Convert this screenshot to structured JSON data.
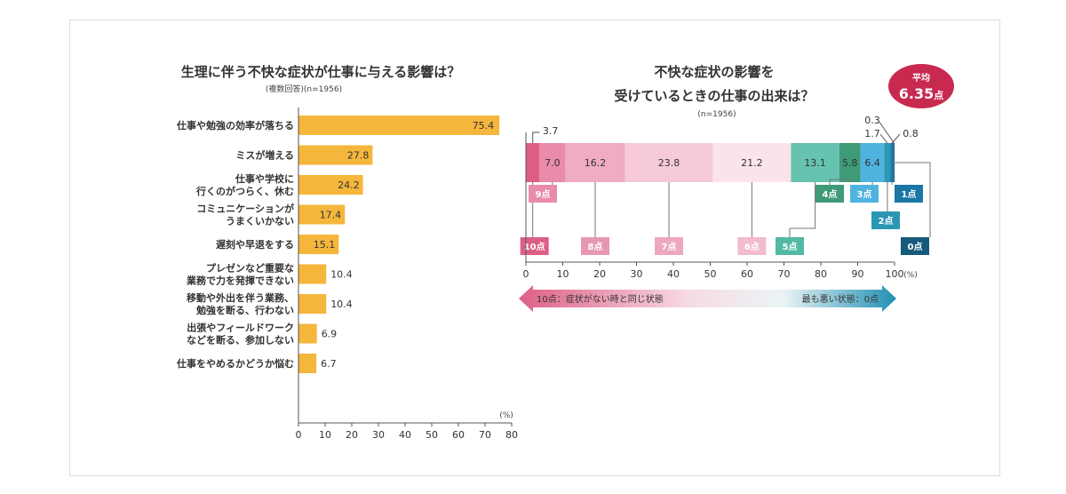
{
  "chart_data": [
    {
      "type": "bar",
      "orientation": "horizontal",
      "title": "生理に伴う不快な症状が仕事に与える影響は？",
      "subtitle": "(複数回答)(n=1956)",
      "unit": "(%)",
      "categories": [
        [
          "仕事や勉強の効率が落ちる"
        ],
        [
          "ミスが増える"
        ],
        [
          "仕事や学校に",
          "行くのがつらく、休む"
        ],
        [
          "コミュニケーションが",
          "うまくいかない"
        ],
        [
          "遅刻や早退をする"
        ],
        [
          "プレゼンなど重要な",
          "業務で力を発揮できない"
        ],
        [
          "移動や外出を伴う業務、",
          "勉強を断る、行わない"
        ],
        [
          "出張やフィールドワーク",
          "などを断る、参加しない"
        ],
        [
          "仕事をやめるかどうか悩む"
        ]
      ],
      "values": [
        75.4,
        27.8,
        24.2,
        17.4,
        15.1,
        10.4,
        10.4,
        6.9,
        6.7
      ],
      "value_labels": [
        "75.4",
        "27.8",
        "24.2",
        "17.4",
        "15.1",
        "10.4",
        "10.4",
        "6.9",
        "6.7"
      ],
      "xlim": [
        0,
        80
      ],
      "xticks": [
        "0",
        "10",
        "20",
        "30",
        "40",
        "50",
        "60",
        "70",
        "80"
      ],
      "bar_color": "#f5b63c"
    },
    {
      "type": "bar",
      "orientation": "stacked-100",
      "title": [
        "不快な症状の影響を",
        "受けているときの仕事の出来は？"
      ],
      "subtitle": "(n=1956)",
      "unit": "(%)",
      "segments": [
        {
          "score": "10点",
          "value": 3.7,
          "label": "3.7",
          "color": "#de5f86",
          "tag_color": "#de5f86"
        },
        {
          "score": "9点",
          "value": 7.0,
          "label": "7.0",
          "color": "#e98ca9",
          "tag_color": "#e98ca9"
        },
        {
          "score": "8点",
          "value": 16.2,
          "label": "16.2",
          "color": "#f0acc0",
          "tag_color": "#e798b0"
        },
        {
          "score": "7点",
          "value": 23.8,
          "label": "23.8",
          "color": "#f6cad6",
          "tag_color": "#eda8bd"
        },
        {
          "score": "6点",
          "value": 21.2,
          "label": "21.2",
          "color": "#fbe3ea",
          "tag_color": "#f1bccb"
        },
        {
          "score": "5点",
          "value": 13.1,
          "label": "13.1",
          "color": "#66c3b0",
          "tag_color": "#52b9a4"
        },
        {
          "score": "4点",
          "value": 5.8,
          "label": "5.8",
          "color": "#3f9a78",
          "tag_color": "#3f9a78"
        },
        {
          "score": "3点",
          "value": 6.4,
          "label": "6.4",
          "color": "#4fb3e0",
          "tag_color": "#4fb3e0"
        },
        {
          "score": "2点",
          "value": 1.7,
          "label": "1.7",
          "color": "#2b97b4",
          "tag_color": "#2b97b4"
        },
        {
          "score": "1点",
          "value": 0.8,
          "label": "0.8",
          "color": "#1b76a5",
          "tag_color": "#1b76a5"
        },
        {
          "score": "0点",
          "value": 0.3,
          "label": "0.3",
          "color": "#155a7a",
          "tag_color": "#155a7a"
        }
      ],
      "xlim": [
        0,
        100
      ],
      "xticks": [
        "0",
        "10",
        "20",
        "30",
        "40",
        "50",
        "60",
        "70",
        "80",
        "90",
        "100"
      ],
      "average_badge": {
        "label": "平均",
        "value": "6.35",
        "unit": "点",
        "color": "#c8294f"
      },
      "scale_arrow": {
        "left_text": "10点：症状がない時と同じ状態",
        "right_text": "最も悪い状態：0点",
        "left_color": "#de5f86",
        "right_color": "#1f8fb2"
      }
    }
  ]
}
